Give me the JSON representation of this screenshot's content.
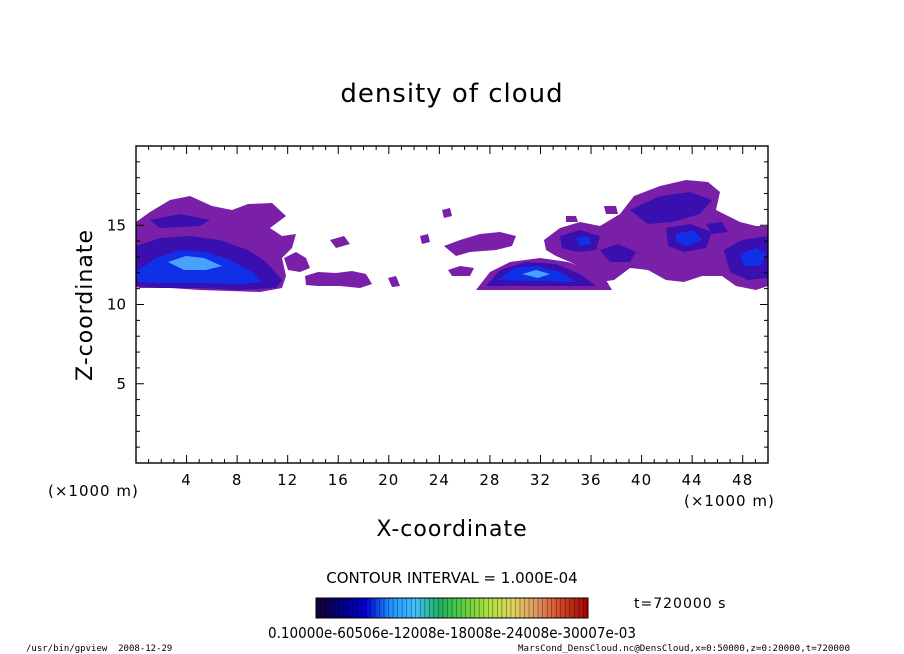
{
  "chart_data": {
    "type": "heatmap",
    "title": "density of cloud",
    "xlabel": "X-coordinate",
    "ylabel": "Z-coordinate",
    "x_unit_left": "(×1000 m)",
    "x_unit_right": "(×1000 m)",
    "xlim": [
      0,
      50
    ],
    "ylim": [
      0,
      20
    ],
    "x_ticks": [
      4,
      8,
      12,
      16,
      20,
      24,
      28,
      32,
      36,
      40,
      44,
      48
    ],
    "y_ticks": [
      5,
      10,
      15
    ],
    "grid": false,
    "contour_interval": "CONTOUR INTERVAL = 1.000E-04",
    "time_label": "t=720000 s",
    "colorbar_label": "0.10000e-60506e-12008e-18008e-24008e-30007e-03",
    "colorbar_colors": [
      "#1a0033",
      "#000080",
      "#0000d0",
      "#1e90ff",
      "#40c0ff",
      "#20b060",
      "#60d040",
      "#b0e040",
      "#e0d060",
      "#e09060",
      "#d04020",
      "#a00000"
    ],
    "footer_left": "/usr/bin/gpview  2008-12-29",
    "footer_right": "MarsCond_DensCloud.nc@DensCloud,x=0:50000,z=0:20000,t=720000",
    "cloud_regions": [
      {
        "x": [
          0,
          12.5
        ],
        "z": [
          11,
          16.8
        ],
        "peak_x": 4.5,
        "peak_z": 12.8,
        "level": "high"
      },
      {
        "x": [
          11.5,
          18.5
        ],
        "z": [
          11,
          13.5
        ],
        "level": "low"
      },
      {
        "x": [
          22.5,
          24
        ],
        "z": [
          14,
          15.8
        ],
        "level": "low"
      },
      {
        "x": [
          24.5,
          30
        ],
        "z": [
          12,
          14.5
        ],
        "level": "low"
      },
      {
        "x": [
          27.5,
          38
        ],
        "z": [
          11,
          13.5
        ],
        "peak_x": 31.5,
        "peak_z": 12.3,
        "level": "high"
      },
      {
        "x": [
          33,
          50
        ],
        "z": [
          11.5,
          17.8
        ],
        "peak_x": 42.5,
        "peak_z": 14.2,
        "level": "medium"
      }
    ]
  }
}
